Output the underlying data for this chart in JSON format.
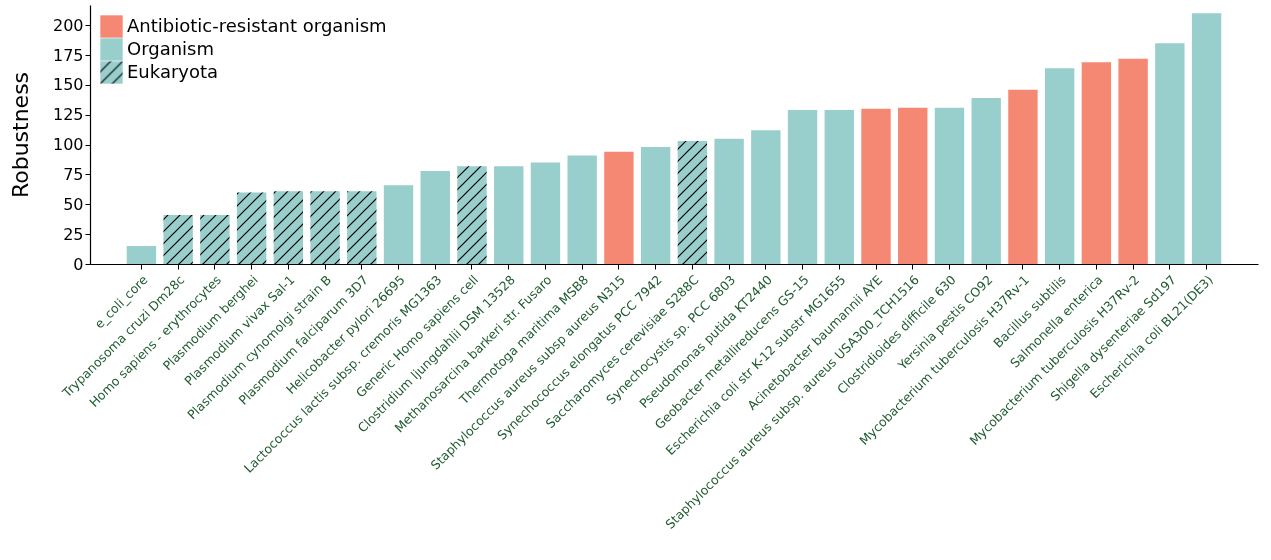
{
  "chart_data": {
    "type": "bar",
    "ylabel": "Robustness",
    "legend": "top left",
    "grid": false,
    "categories": [
      "e_coli_core",
      "Trypanosoma cruzi Dm28c",
      "Homo sapiens - erythrocytes",
      "Plasmodium berghei",
      "Plasmodium vivax Sal-1",
      "Plasmodium cynomolgi strain B",
      "Plasmodium falciparum 3D7",
      "Helicobacter pylori 26695",
      "Lactococcus lactis subsp. cremoris MG1363",
      "Generic Homo sapiens cell",
      "Clostridium ljungdahlii DSM 13528",
      "Methanosarcina barkeri str. Fusaro",
      "Thermotoga maritima MSB8",
      "Staphylococcus aureus subsp aureus N315",
      "Synechococcus elongatus PCC 7942",
      "Saccharomyces cerevisiae S288C",
      "Synechocystis sp. PCC 6803",
      "Pseudomonas putida KT2440",
      "Geobacter metallireducens GS-15",
      "Escherichia coli str K-12 substr MG1655",
      "Acinetobacter baumannii AYE",
      "Staphylococcus aureus subsp. aureus USA300_TCH1516",
      "Clostridioides difficile 630",
      "Yersinia pestis CO92",
      "Mycobacterium tuberculosis H37Rv-1",
      "Bacillus subtilis",
      "Salmonella enterica",
      "Mycobacterium tuberculosis H37Rv-2",
      "Shigella dysenteriae Sd197",
      "Escherichia coli BL21(DE3)"
    ],
    "series": [
      {
        "name": "Antibiotic-resistant organism",
        "color": "#f58872",
        "values": [
          null,
          null,
          null,
          null,
          null,
          null,
          null,
          null,
          null,
          null,
          null,
          null,
          null,
          94,
          null,
          null,
          null,
          null,
          null,
          null,
          130,
          131,
          null,
          null,
          146,
          null,
          169,
          172,
          null,
          null
        ]
      },
      {
        "name": "Organism",
        "color": "#98cecb",
        "values": [
          15,
          null,
          null,
          null,
          null,
          null,
          null,
          66,
          78,
          null,
          82,
          85,
          91,
          null,
          98,
          null,
          105,
          112,
          129,
          129,
          null,
          null,
          131,
          139,
          null,
          164,
          null,
          null,
          185,
          210
        ]
      },
      {
        "name": "Eukaryota",
        "color": "#98cecb",
        "values": [
          null,
          41,
          41,
          60,
          61,
          61,
          61,
          null,
          null,
          82,
          null,
          null,
          null,
          null,
          null,
          103,
          null,
          null,
          null,
          null,
          null,
          null,
          null,
          null,
          null,
          null,
          null,
          null,
          null,
          null
        ]
      }
    ],
    "ylim": [
      0,
      217
    ],
    "yticks": [
      0,
      25,
      50,
      75,
      100,
      125,
      150,
      175,
      200
    ]
  }
}
